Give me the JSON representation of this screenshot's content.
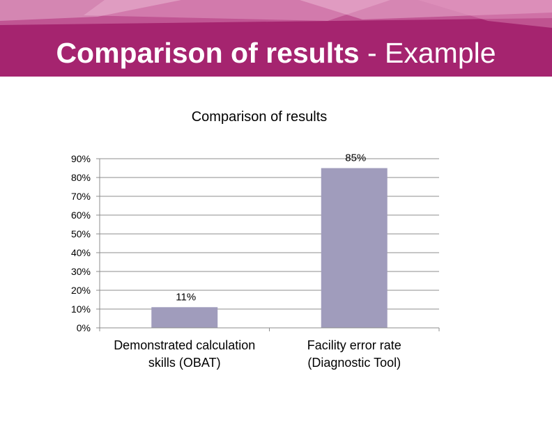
{
  "slide": {
    "title_bold": "Comparison of results",
    "title_rest": " - Example",
    "colors": {
      "banner": "#a5246f",
      "bar": "#a09cbc",
      "grid": "#8c8c8c"
    }
  },
  "chart_data": {
    "type": "bar",
    "title": "Comparison of results",
    "categories": [
      [
        "Demonstrated calculation",
        "skills (OBAT)"
      ],
      [
        "Facility error rate",
        "(Diagnostic Tool)"
      ]
    ],
    "values": [
      11,
      85
    ],
    "data_labels": [
      "11%",
      "85%"
    ],
    "yticks": [
      "0%",
      "10%",
      "20%",
      "30%",
      "40%",
      "50%",
      "60%",
      "70%",
      "80%",
      "90%"
    ],
    "ylim": [
      0,
      90
    ],
    "grid": true,
    "legend": "none",
    "xlabel": "",
    "ylabel": ""
  }
}
